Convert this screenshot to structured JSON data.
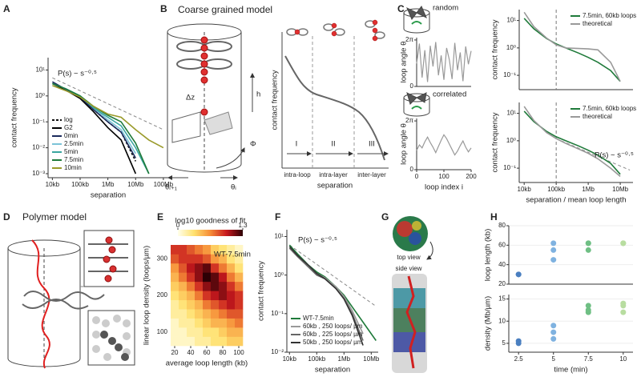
{
  "chart_data": [
    {
      "type": "line",
      "log_x": true,
      "log_y": true,
      "x_label": "separation",
      "y_label": "contact frequency",
      "xlim": [
        7000,
        150000000
      ],
      "ylim": [
        0.0007,
        30
      ],
      "xticks": [
        {
          "value": 10000,
          "label": "10kb"
        },
        {
          "value": 100000,
          "label": "100kb"
        },
        {
          "value": 1000000,
          "label": "1Mb"
        },
        {
          "value": 10000000,
          "label": "10Mb"
        },
        {
          "value": 100000000,
          "label": "100Mb"
        }
      ],
      "yticks": [
        {
          "value": 10,
          "label": "10¹"
        },
        {
          "value": 1,
          "label": "10⁰"
        },
        {
          "value": 0.1,
          "label": "10⁻¹"
        },
        {
          "value": 0.01,
          "label": "10⁻²"
        },
        {
          "value": 0.001,
          "label": "10⁻³"
        }
      ],
      "x": [
        10000,
        30000,
        100000,
        300000,
        1000000,
        3000000,
        10000000,
        30000000,
        100000000
      ],
      "series": [
        {
          "name": "log",
          "color": "#111111",
          "dashed": true,
          "values": [
            3,
            1.8,
            0.9,
            0.3,
            0.1,
            0.04,
            0.003,
            null,
            null
          ]
        },
        {
          "name": "G2",
          "color": "#000000",
          "values": [
            3,
            1.7,
            0.8,
            0.25,
            0.06,
            0.02,
            0.001,
            null,
            null
          ]
        },
        {
          "name": "0min",
          "color": "#1b2a5c",
          "values": [
            3.5,
            1.8,
            0.9,
            0.3,
            0.1,
            0.04,
            0.004,
            null,
            null
          ]
        },
        {
          "name": "2.5min",
          "color": "#7cc3d8",
          "values": [
            3,
            1.9,
            1,
            0.35,
            0.12,
            0.05,
            0.006,
            null,
            null
          ]
        },
        {
          "name": "5min",
          "color": "#3aa6a0",
          "values": [
            3,
            1.9,
            1,
            0.35,
            0.15,
            0.07,
            0.01,
            0.001,
            null
          ]
        },
        {
          "name": "7.5min",
          "color": "#1f7a3a",
          "values": [
            3,
            1.9,
            1,
            0.4,
            0.18,
            0.1,
            0.015,
            0.001,
            null
          ]
        },
        {
          "name": "10min",
          "color": "#9a9a2a",
          "values": [
            2.5,
            1.6,
            0.9,
            0.4,
            0.2,
            0.15,
            0.05,
            0.02,
            0.01
          ]
        }
      ],
      "guide": {
        "x": [
          10000,
          100000000
        ],
        "y": [
          5,
          0.05
        ]
      },
      "annotation": "P(s) ~ s⁻⁰·⁵",
      "legend": "lower left"
    },
    {
      "type": "line",
      "y_label": "loop angle θ",
      "xlim": [
        0,
        200
      ],
      "ylim": [
        0,
        6.6
      ],
      "yticks": [
        {
          "value": 6.283,
          "label": "2π"
        },
        0
      ],
      "x": [
        0,
        10,
        20,
        30,
        40,
        50,
        60,
        70,
        80,
        90,
        100,
        110,
        120,
        130,
        140,
        150,
        160,
        170,
        180,
        190,
        200
      ],
      "series": [
        {
          "color": "#999999",
          "values": [
            3.1,
            5.8,
            1.2,
            4.9,
            0.6,
            5.5,
            2.7,
            6.0,
            1.5,
            4.2,
            0.9,
            5.2,
            3.6,
            1.0,
            5.9,
            2.2,
            4.6,
            0.7,
            5.4,
            3.0,
            4.8
          ]
        }
      ]
    },
    {
      "type": "line",
      "y_label": "loop angle θ",
      "x_label": "loop index i",
      "xlim": [
        0,
        200
      ],
      "ylim": [
        0,
        6.6
      ],
      "yticks": [
        {
          "value": 6.283,
          "label": "2π"
        },
        0
      ],
      "xticks": [
        0,
        100,
        200
      ],
      "x": [
        0,
        10,
        20,
        30,
        40,
        50,
        60,
        70,
        80,
        90,
        100,
        110,
        120,
        130,
        140,
        150,
        160,
        170,
        180,
        190,
        200
      ],
      "series": [
        {
          "color": "#999999",
          "values": [
            2.5,
            3.2,
            2.8,
            3.6,
            4.2,
            3.5,
            2.9,
            2.2,
            3.0,
            3.8,
            4.5,
            4.0,
            3.3,
            2.6,
            1.9,
            2.4,
            3.1,
            3.7,
            2.9,
            2.3,
            2.8
          ]
        }
      ]
    },
    {
      "type": "line",
      "log_x": true,
      "log_y": true,
      "y_label": "contact frequency",
      "xlim": [
        7000,
        25000000
      ],
      "ylim": [
        0.03,
        25
      ],
      "yticks": [
        {
          "value": 10,
          "label": "10¹"
        },
        {
          "value": 1,
          "label": "10⁰"
        },
        {
          "value": 0.1,
          "label": "10⁻¹"
        }
      ],
      "x": [
        10000,
        20000,
        50000,
        100000,
        200000,
        500000,
        1000000,
        2000000,
        5000000,
        10000000,
        20000000
      ],
      "series": [
        {
          "name": "7.5min, 60kb loops",
          "color": "#1f7a3a",
          "values": [
            12,
            5,
            2.2,
            1.4,
            1.0,
            0.65,
            0.45,
            0.3,
            0.15,
            0.06,
            null
          ]
        },
        {
          "name": "theoretical",
          "color": "#999999",
          "values": [
            20,
            6,
            2.3,
            1.3,
            1.0,
            0.95,
            0.92,
            0.85,
            0.3,
            0.06,
            null
          ]
        }
      ],
      "vline": 100000,
      "legend": "upper right"
    },
    {
      "type": "line",
      "log_x": true,
      "log_y": true,
      "y_label": "contact frequency",
      "x_label": "separation / mean loop length",
      "xlim": [
        7000,
        25000000
      ],
      "ylim": [
        0.03,
        25
      ],
      "xticks": [
        {
          "value": 10000,
          "label": "10kb"
        },
        {
          "value": 100000,
          "label": "100kb"
        },
        {
          "value": 1000000,
          "label": "1Mb"
        },
        {
          "value": 10000000,
          "label": "10Mb"
        }
      ],
      "yticks": [
        {
          "value": 10,
          "label": "10¹"
        },
        {
          "value": 1,
          "label": "10⁰"
        },
        {
          "value": 0.1,
          "label": "10⁻¹"
        }
      ],
      "x": [
        10000,
        20000,
        50000,
        100000,
        200000,
        500000,
        1000000,
        2000000,
        5000000,
        10000000,
        20000000
      ],
      "series": [
        {
          "name": "7.5min, 60kb loops",
          "color": "#1f7a3a",
          "values": [
            12,
            5,
            2.2,
            1.4,
            1.0,
            0.65,
            0.45,
            0.3,
            0.15,
            0.06,
            null
          ]
        },
        {
          "name": "theoretical",
          "color": "#999999",
          "values": [
            18,
            5.5,
            2.0,
            1.2,
            0.8,
            0.5,
            0.35,
            0.22,
            0.1,
            0.05,
            null
          ]
        }
      ],
      "vline": 100000,
      "guide": {
        "x": [
          100000,
          20000000
        ],
        "y": [
          1.2,
          0.085
        ]
      },
      "annotation": "P(s) ~ s⁻⁰·⁵",
      "legend": "upper right"
    },
    {
      "type": "heatmap",
      "title": "log10 goodness of fit",
      "x_label": "average loop length (kb)",
      "y_label": "linear loop density (loops/µm)",
      "xlim": [
        15,
        105
      ],
      "ylim": [
        62.5,
        337.5
      ],
      "xticks": [
        20,
        40,
        60,
        80,
        100
      ],
      "yticks": [
        100,
        200,
        300
      ],
      "clim": [
        0,
        1.3
      ],
      "colorbar_ticks": [
        0,
        1.3
      ],
      "annotation": "WT-7.5min",
      "x": [
        20,
        30,
        40,
        50,
        60,
        70,
        80,
        90,
        100
      ],
      "y": [
        75,
        100,
        125,
        150,
        175,
        200,
        225,
        250,
        275,
        300,
        325
      ],
      "z": [
        [
          0.1,
          0.1,
          0.1,
          0.2,
          0.2,
          0.3,
          0.3,
          0.4,
          0.4
        ],
        [
          0.1,
          0.1,
          0.2,
          0.2,
          0.3,
          0.3,
          0.4,
          0.5,
          0.5
        ],
        [
          0.1,
          0.2,
          0.2,
          0.3,
          0.4,
          0.5,
          0.5,
          0.6,
          0.7
        ],
        [
          0.2,
          0.2,
          0.3,
          0.4,
          0.5,
          0.6,
          0.7,
          0.8,
          0.8
        ],
        [
          0.2,
          0.3,
          0.4,
          0.5,
          0.7,
          0.8,
          0.9,
          1.0,
          0.9
        ],
        [
          0.3,
          0.4,
          0.5,
          0.7,
          0.9,
          1.0,
          1.1,
          1.0,
          0.9
        ],
        [
          0.4,
          0.5,
          0.7,
          0.9,
          1.1,
          1.2,
          1.1,
          0.9,
          0.7
        ],
        [
          0.5,
          0.7,
          0.9,
          1.1,
          1.3,
          1.2,
          1.0,
          0.7,
          0.5
        ],
        [
          0.6,
          0.8,
          1.0,
          1.1,
          1.2,
          0.9,
          0.7,
          0.5,
          0.3
        ],
        [
          0.8,
          0.9,
          0.9,
          0.9,
          0.8,
          0.6,
          0.5,
          0.3,
          0.2
        ],
        [
          0.9,
          0.9,
          0.8,
          0.7,
          0.6,
          0.4,
          0.3,
          0.2,
          0.1
        ]
      ]
    },
    {
      "type": "line",
      "log_x": true,
      "log_y": true,
      "x_label": "separation",
      "y_label": "contact frequency",
      "xlim": [
        8000,
        18000000
      ],
      "ylim": [
        0.01,
        15
      ],
      "xticks": [
        {
          "value": 10000,
          "label": "10kb"
        },
        {
          "value": 100000,
          "label": "100kb"
        },
        {
          "value": 1000000,
          "label": "1Mb"
        },
        {
          "value": 10000000,
          "label": "10Mb"
        }
      ],
      "yticks": [
        {
          "value": 10,
          "label": "10¹"
        },
        {
          "value": 1,
          "label": "10⁰"
        },
        {
          "value": 0.1,
          "label": "10⁻¹"
        },
        {
          "value": 0.01,
          "label": "10⁻²"
        }
      ],
      "x": [
        10000,
        20000,
        50000,
        100000,
        200000,
        500000,
        1000000,
        2000000,
        5000000,
        10000000,
        15000000
      ],
      "series": [
        {
          "name": "WT-7.5min",
          "color": "#1f7a3a",
          "values": [
            6,
            3.5,
            1.8,
            1.2,
            0.9,
            0.5,
            0.3,
            0.15,
            0.06,
            0.03,
            0.02
          ]
        },
        {
          "name": "60kb , 250 loops/ µm",
          "color": "#999999",
          "values": [
            5,
            3,
            1.7,
            1.1,
            0.85,
            0.5,
            0.28,
            0.12,
            0.03,
            null,
            null
          ]
        },
        {
          "name": "60kb , 225 loops/ µm",
          "color": "#666666",
          "values": [
            5,
            3,
            1.6,
            1.0,
            0.8,
            0.45,
            0.25,
            0.1,
            0.02,
            null,
            null
          ]
        },
        {
          "name": "50kb , 250 loops/ µm",
          "color": "#333333",
          "values": [
            5.5,
            3.2,
            1.8,
            1.1,
            0.8,
            0.45,
            0.24,
            0.09,
            0.015,
            null,
            null
          ]
        }
      ],
      "guide": {
        "x": [
          10000,
          15000000
        ],
        "y": [
          6,
          0.155
        ]
      },
      "annotation": "P(s) ~ s⁻⁰·⁵",
      "legend": "lower left"
    },
    {
      "type": "scatter",
      "y_label": "loop  length (kb)",
      "xlim": [
        1.8,
        10.7
      ],
      "ylim": [
        20,
        80
      ],
      "yticks": [
        20,
        40,
        60,
        80
      ],
      "grid": true,
      "x": [
        2.5,
        2.5,
        5,
        5,
        5,
        7.5,
        7.5,
        7.5,
        10,
        10,
        10
      ],
      "values": [
        30,
        30,
        45,
        55,
        62,
        62,
        55,
        62,
        62,
        62,
        62
      ],
      "colors": [
        "#4a7fc0",
        "#4a7fc0",
        "#7fb2e0",
        "#7fb2e0",
        "#7fb2e0",
        "#6fbf84",
        "#6fbf84",
        "#6fbf84",
        "#b8dda0",
        "#b8dda0",
        "#b8dda0"
      ]
    },
    {
      "type": "scatter",
      "y_label": "density (Mb/µm)",
      "x_label": "time (min)",
      "xlim": [
        1.8,
        10.7
      ],
      "ylim": [
        3,
        16
      ],
      "yticks": [
        5,
        10,
        15
      ],
      "grid": true,
      "xticks": [
        2.5,
        5,
        7.5,
        10
      ],
      "x": [
        2.5,
        2.5,
        5,
        5,
        5,
        7.5,
        7.5,
        7.5,
        10,
        10,
        10
      ],
      "values": [
        5.5,
        5,
        6,
        7.5,
        9,
        12,
        13.5,
        12.5,
        12,
        13.5,
        14
      ],
      "colors": [
        "#4a7fc0",
        "#4a7fc0",
        "#7fb2e0",
        "#7fb2e0",
        "#7fb2e0",
        "#6fbf84",
        "#6fbf84",
        "#6fbf84",
        "#b8dda0",
        "#b8dda0",
        "#b8dda0"
      ]
    }
  ],
  "figure": {
    "panel_letters": [
      "A",
      "B",
      "C",
      "D",
      "E",
      "F",
      "G",
      "H"
    ],
    "B": {
      "title": "Coarse grained model",
      "y_label": "contact frequency",
      "x_label": "separation",
      "regions": [
        "I",
        "II",
        "III"
      ],
      "region_names": [
        "intra-loop",
        "intra-layer",
        "inter-layer"
      ],
      "symbols": [
        "Δz",
        "h",
        "Φ",
        "θᵢ₊₁",
        "θᵢ"
      ]
    },
    "C": {
      "modes": [
        "random",
        "correlated"
      ]
    },
    "D": {
      "title": "Polymer model"
    },
    "G": {
      "views": [
        "top view",
        "side view"
      ]
    }
  }
}
